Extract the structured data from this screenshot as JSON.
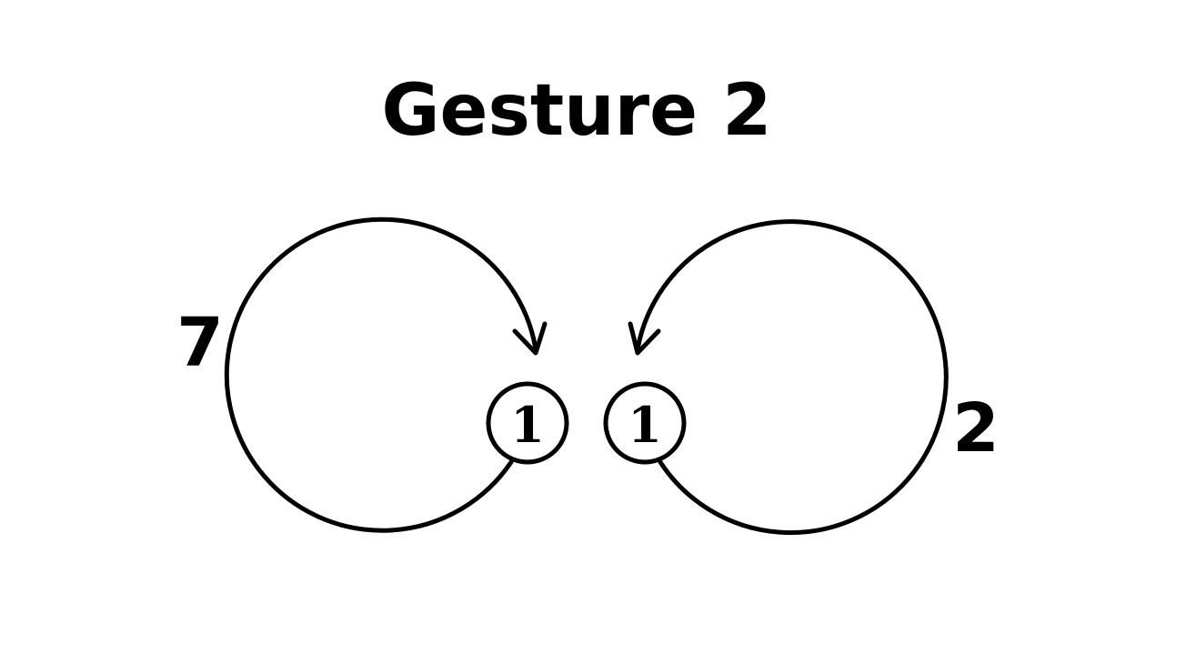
{
  "diagram": {
    "title": "Gesture 2",
    "left_gesture": {
      "direction": "clockwise",
      "side_label": "7",
      "touch_label": "1"
    },
    "right_gesture": {
      "direction": "counter-clockwise",
      "side_label": "2",
      "touch_label": "1"
    }
  },
  "colors": {
    "background": "#ffffff",
    "ink": "#000000"
  }
}
